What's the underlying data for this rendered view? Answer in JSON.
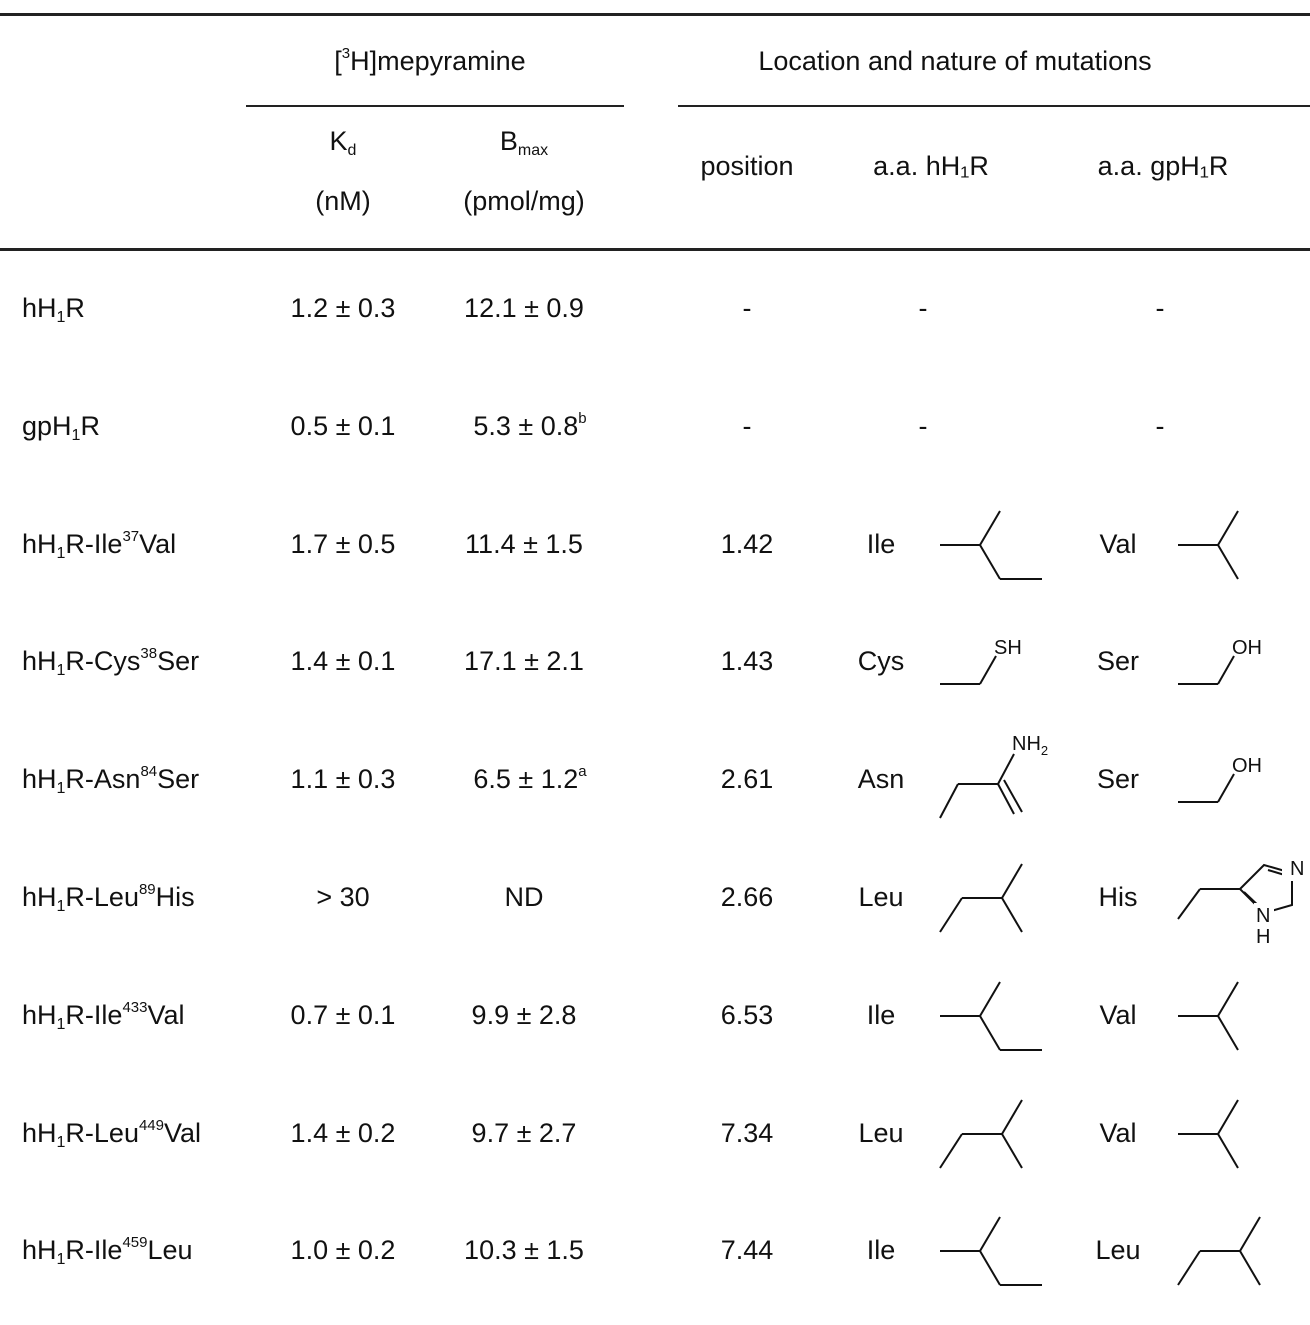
{
  "header": {
    "group1": {
      "pre": "[",
      "sup": "3",
      "post": "H]mepyramine"
    },
    "group2": "Location and nature of mutations",
    "kd": {
      "main": "K",
      "sub": "d",
      "unit": "(nM)"
    },
    "bmax": {
      "main": "B",
      "sub": "max",
      "unit": "(pmol/mg)"
    },
    "position": "position",
    "aa_h": "a.a. hH₁R",
    "aa_gp": "a.a. gpH₁R"
  },
  "rows": [
    {
      "name": {
        "a": "hH",
        "sub": "1",
        "b": "R",
        "sup": "",
        "c": ""
      },
      "kd": "1.2 ± 0.3",
      "bmax": "12.1 ± 0.9",
      "bmax_sup": "",
      "position": "-",
      "aa_h": "-",
      "aa_gp": "-",
      "h_icon": "",
      "gp_icon": ""
    },
    {
      "name": {
        "a": "gpH",
        "sub": "1",
        "b": "R",
        "sup": "",
        "c": ""
      },
      "kd": "0.5 ± 0.1",
      "bmax": "5.3 ± 0.8",
      "bmax_sup": "b",
      "position": "-",
      "aa_h": "-",
      "aa_gp": "-",
      "h_icon": "",
      "gp_icon": ""
    },
    {
      "name": {
        "a": "hH",
        "sub": "1",
        "b": "R-Ile",
        "sup": "37",
        "c": "Val"
      },
      "kd": "1.7 ± 0.5",
      "bmax": "11.4 ± 1.5",
      "bmax_sup": "",
      "position": "1.42",
      "aa_h": "Ile",
      "aa_gp": "Val",
      "h_icon": "ile-sidechain-icon",
      "gp_icon": "val-sidechain-icon"
    },
    {
      "name": {
        "a": "hH",
        "sub": "1",
        "b": "R-Cys",
        "sup": "38",
        "c": "Ser"
      },
      "kd": "1.4 ± 0.1",
      "bmax": "17.1 ± 2.1",
      "bmax_sup": "",
      "position": "1.43",
      "aa_h": "Cys",
      "aa_gp": "Ser",
      "h_icon": "cys-sidechain-icon",
      "gp_icon": "ser-sidechain-icon"
    },
    {
      "name": {
        "a": "hH",
        "sub": "1",
        "b": "R-Asn",
        "sup": "84",
        "c": "Ser"
      },
      "kd": "1.1 ± 0.3",
      "bmax": "6.5 ± 1.2",
      "bmax_sup": "a",
      "position": "2.61",
      "aa_h": "Asn",
      "aa_gp": "Ser",
      "h_icon": "asn-sidechain-icon",
      "gp_icon": "ser-sidechain-icon"
    },
    {
      "name": {
        "a": "hH",
        "sub": "1",
        "b": "R-Leu",
        "sup": "89",
        "c": "His"
      },
      "kd": "> 30",
      "bmax": "ND",
      "bmax_sup": "",
      "position": "2.66",
      "aa_h": "Leu",
      "aa_gp": "His",
      "h_icon": "leu-sidechain-icon",
      "gp_icon": "his-sidechain-icon"
    },
    {
      "name": {
        "a": "hH",
        "sub": "1",
        "b": "R-Ile",
        "sup": "433",
        "c": "Val"
      },
      "kd": "0.7 ± 0.1",
      "bmax": "9.9 ± 2.8",
      "bmax_sup": "",
      "position": "6.53",
      "aa_h": "Ile",
      "aa_gp": "Val",
      "h_icon": "ile-sidechain-icon",
      "gp_icon": "val-sidechain-icon"
    },
    {
      "name": {
        "a": "hH",
        "sub": "1",
        "b": "R-Leu",
        "sup": "449",
        "c": "Val"
      },
      "kd": "1.4 ± 0.2",
      "bmax": "9.7 ± 2.7",
      "bmax_sup": "",
      "position": "7.34",
      "aa_h": "Leu",
      "aa_gp": "Val",
      "h_icon": "leu-sidechain-icon",
      "gp_icon": "val-sidechain-icon"
    },
    {
      "name": {
        "a": "hH",
        "sub": "1",
        "b": "R-Ile",
        "sup": "459",
        "c": "Leu"
      },
      "kd": "1.0 ± 0.2",
      "bmax": "10.3 ± 1.5",
      "bmax_sup": "",
      "position": "7.44",
      "aa_h": "Ile",
      "aa_gp": "Leu",
      "h_icon": "ile-sidechain-icon",
      "gp_icon": "leu-sidechain-icon"
    }
  ],
  "structure_labels": {
    "sh": "SH",
    "oh": "OH",
    "nh": "NH",
    "nh_sub": "2",
    "n": "N",
    "h": "H"
  }
}
